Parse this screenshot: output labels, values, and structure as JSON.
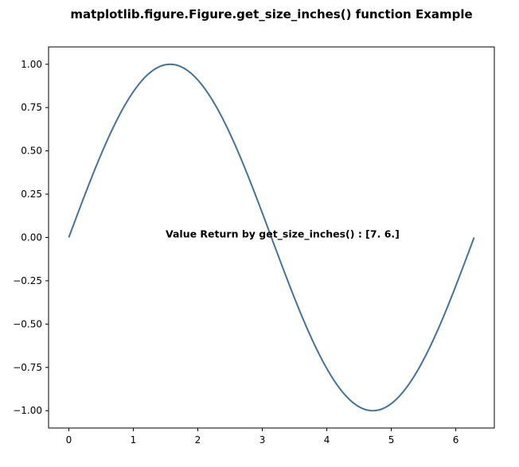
{
  "chart_data": {
    "type": "line",
    "title": "matplotlib.figure.Figure.get_size_inches() function Example",
    "xlabel": "",
    "ylabel": "",
    "xlim": [
      -0.314,
      6.597
    ],
    "ylim": [
      -1.1,
      1.1
    ],
    "xticks": [
      0,
      1,
      2,
      3,
      4,
      5,
      6
    ],
    "xtick_labels": [
      "0",
      "1",
      "2",
      "3",
      "4",
      "5",
      "6"
    ],
    "yticks": [
      1.0,
      0.75,
      0.5,
      0.25,
      0.0,
      -0.25,
      -0.5,
      -0.75,
      -1.0
    ],
    "ytick_labels": [
      "1.00",
      "0.75",
      "0.50",
      "0.25",
      "0.00",
      "−0.25",
      "−0.50",
      "−0.75",
      "−1.00"
    ],
    "grid": false,
    "series": [
      {
        "function": "sin(x)",
        "color": "#44739a",
        "x": [
          0,
          0.5,
          1.0,
          1.5708,
          2.0,
          2.5,
          3.1416,
          3.5,
          4.0,
          4.7124,
          5.0,
          5.5,
          6.2832
        ],
        "y": [
          0,
          0.479,
          0.841,
          1.0,
          0.909,
          0.598,
          0.0,
          -0.351,
          -0.757,
          -1.0,
          -0.959,
          -0.706,
          0.0
        ]
      }
    ],
    "annotation": {
      "text": "Value Return by get_size_inches() : [7. 6.]",
      "x": 1.5,
      "y": 0.0
    }
  }
}
